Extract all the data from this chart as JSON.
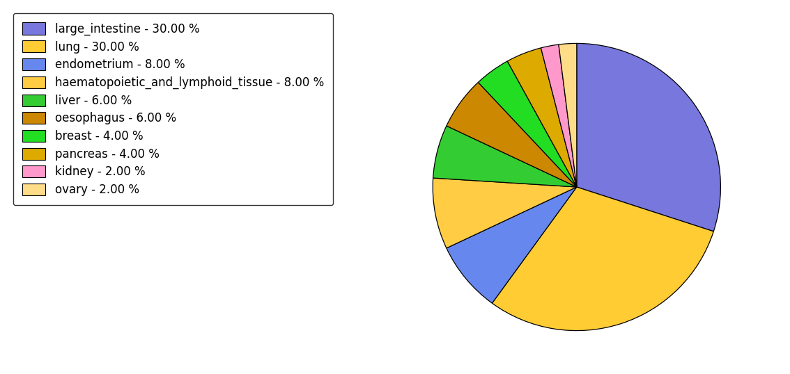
{
  "labels": [
    "large_intestine - 30.00 %",
    "lung - 30.00 %",
    "endometrium - 8.00 %",
    "haematopoietic_and_lymphoid_tissue - 8.00 %",
    "liver - 6.00 %",
    "oesophagus - 6.00 %",
    "breast - 4.00 %",
    "pancreas - 4.00 %",
    "kidney - 2.00 %",
    "ovary - 2.00 %"
  ],
  "values": [
    30,
    30,
    8,
    8,
    6,
    6,
    4,
    4,
    2,
    2
  ],
  "colors": [
    "#7777dd",
    "#ffcc33",
    "#6688ee",
    "#ffcc44",
    "#33cc33",
    "#cc8800",
    "#22dd22",
    "#ddaa00",
    "#ff99cc",
    "#ffdd88"
  ],
  "legend_fontsize": 12,
  "figsize": [
    11.34,
    5.38
  ],
  "dpi": 100
}
